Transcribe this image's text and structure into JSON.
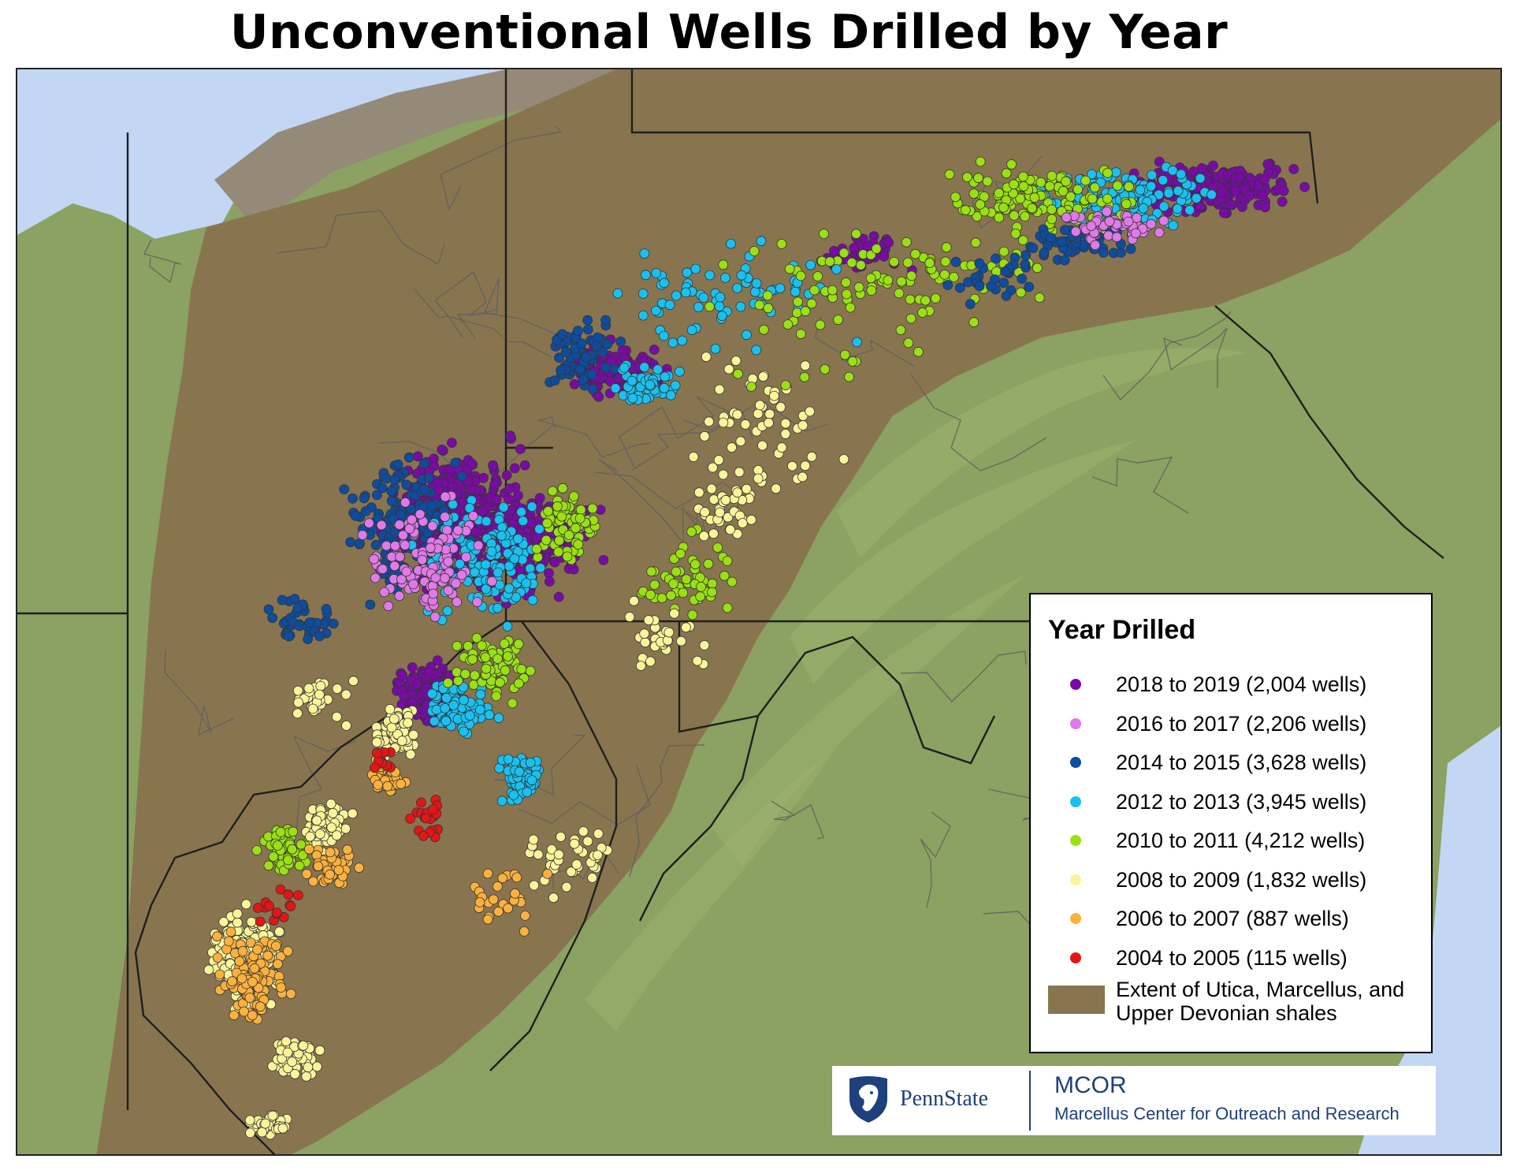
{
  "title": "Unconventional Wells Drilled by Year",
  "colors": {
    "shale": "#887550",
    "terrain": "#8da463",
    "lake": "#c3d6f4",
    "ocean": "#c3d6f4",
    "border": "#333333"
  },
  "legend": {
    "title": "Year Drilled",
    "items": [
      {
        "label": "2018 to 2019 (2,004 wells)",
        "color": "#7a0aa6"
      },
      {
        "label": "2016 to 2017 (2,206 wells)",
        "color": "#e07ae8"
      },
      {
        "label": "2014 to 2015 (3,628 wells)",
        "color": "#0e4c9e"
      },
      {
        "label": "2012 to 2013 (3,945 wells)",
        "color": "#19c1f0"
      },
      {
        "label": "2010 to 2011 (4,212 wells)",
        "color": "#9ae012"
      },
      {
        "label": "2008 to 2009 (1,832 wells)",
        "color": "#fbf59a"
      },
      {
        "label": "2006 to 2007 (887 wells)",
        "color": "#fbb13d"
      },
      {
        "label": "2004 to 2005 (115 wells)",
        "color": "#e31515"
      }
    ],
    "extent_label": "Extent of Utica, Marcellus, and Upper Devonian shales"
  },
  "logos": {
    "psu_icon": "nittany-lion-shield-icon",
    "psu_name": "PennState",
    "mcor_name": "MCOR",
    "mcor_full": "Marcellus Center for Outreach and Research"
  }
}
